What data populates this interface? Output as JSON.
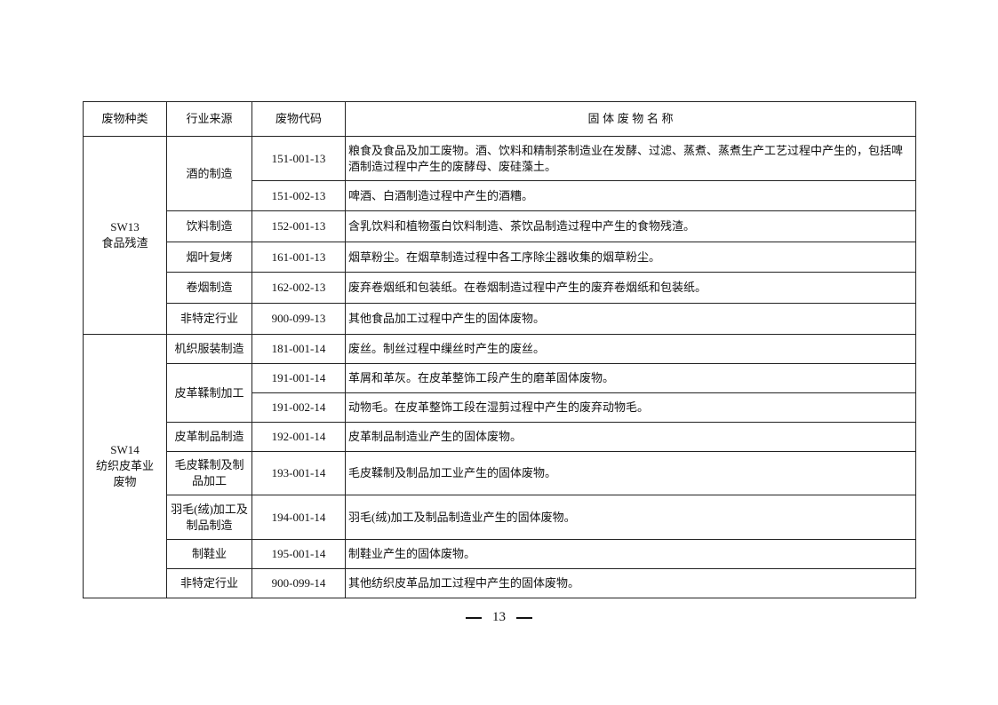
{
  "headers": [
    "废物种类",
    "行业来源",
    "废物代码",
    "固 体 废 物 名 称"
  ],
  "groups": [
    {
      "category": "SW13\n食品残渣"
    },
    {
      "category": "SW14\n纺织皮革业\n废物"
    }
  ],
  "sources": {
    "s1": "酒的制造",
    "s2": "饮料制造",
    "s3": "烟叶复烤",
    "s4": "卷烟制造",
    "s5": "非特定行业",
    "s6": "机织服装制造",
    "s7": "皮革鞣制加工",
    "s8": "皮革制品制造",
    "s9": "毛皮鞣制及制品加工",
    "s10": "羽毛(绒)加工及制品制造",
    "s11": "制鞋业",
    "s12": "非特定行业"
  },
  "rows": [
    {
      "code": "151-001-13",
      "name": "粮食及食品及加工废物。酒、饮料和精制茶制造业在发酵、过滤、蒸煮、蒸煮生产工艺过程中产生的，包括啤酒制造过程中产生的废酵母、废硅藻土。"
    },
    {
      "code": "151-002-13",
      "name": "啤酒、白酒制造过程中产生的酒糟。"
    },
    {
      "code": "152-001-13",
      "name": "含乳饮料和植物蛋白饮料制造、茶饮品制造过程中产生的食物残渣。"
    },
    {
      "code": "161-001-13",
      "name": "烟草粉尘。在烟草制造过程中各工序除尘器收集的烟草粉尘。"
    },
    {
      "code": "162-002-13",
      "name": "废弃卷烟纸和包装纸。在卷烟制造过程中产生的废弃卷烟纸和包装纸。"
    },
    {
      "code": "900-099-13",
      "name": "其他食品加工过程中产生的固体废物。"
    },
    {
      "code": "181-001-14",
      "name": "废丝。制丝过程中缫丝时产生的废丝。"
    },
    {
      "code": "191-001-14",
      "name": "革屑和革灰。在皮革整饰工段产生的磨革固体废物。"
    },
    {
      "code": "191-002-14",
      "name": "动物毛。在皮革整饰工段在湿剪过程中产生的废弃动物毛。"
    },
    {
      "code": "192-001-14",
      "name": "皮革制品制造业产生的固体废物。"
    },
    {
      "code": "193-001-14",
      "name": "毛皮鞣制及制品加工业产生的固体废物。"
    },
    {
      "code": "194-001-14",
      "name": "羽毛(绒)加工及制品制造业产生的固体废物。"
    },
    {
      "code": "195-001-14",
      "name": "制鞋业产生的固体废物。"
    },
    {
      "code": "900-099-14",
      "name": "其他纺织皮革品加工过程中产生的固体废物。"
    }
  ],
  "page_number": "13"
}
